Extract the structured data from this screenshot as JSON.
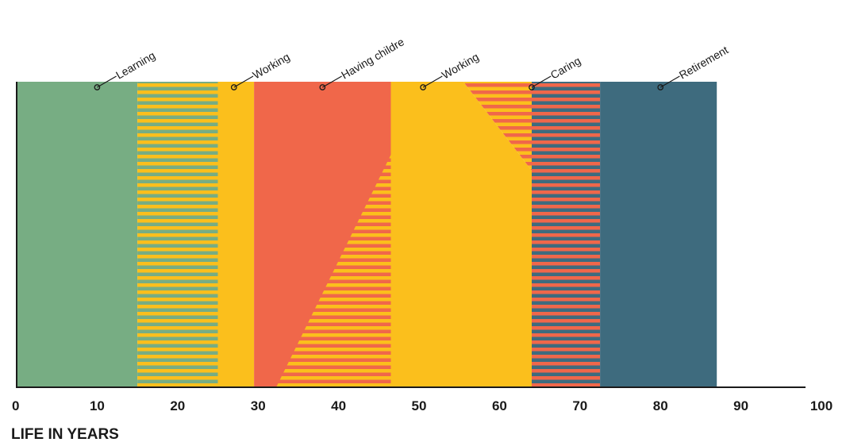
{
  "chart_data": {
    "type": "area",
    "xlabel": "LIFE IN YEARS",
    "xlim": [
      0,
      100
    ],
    "xticks": [
      0,
      10,
      20,
      30,
      40,
      50,
      60,
      70,
      80,
      90,
      100
    ],
    "stages": [
      {
        "label": "Learning",
        "start": 0,
        "end": 15,
        "color": "#77ad83",
        "marker_age": 10
      },
      {
        "label": "Working",
        "start": 25,
        "end": 29.5,
        "color": "#fbbf1c",
        "marker_age": 27
      },
      {
        "label": "Having childre",
        "start": 29.5,
        "end": 46.5,
        "color": "#f0674a",
        "marker_age": 38
      },
      {
        "label": "Working",
        "start": 46.5,
        "end": 64,
        "color": "#fbbf1c",
        "marker_age": 50.5
      },
      {
        "label": "Caring",
        "start": 64,
        "end": 72.5,
        "color": "#f0674a",
        "marker_age": 64
      },
      {
        "label": "Retirement",
        "start": 72.5,
        "end": 87,
        "color": "#3e6b7e",
        "marker_age": 80
      }
    ],
    "mixed_periods": [
      {
        "start": 15,
        "end": 25,
        "colors": [
          "#fbbf1c",
          "#77ad83"
        ]
      },
      {
        "start": 64,
        "end": 72.5,
        "colors": [
          "#3e6b7e",
          "#f0674a"
        ]
      }
    ],
    "colors": {
      "learning": "#77ad83",
      "working": "#fbbf1c",
      "children": "#f0674a",
      "caring": "#f0674a",
      "retirement": "#3e6b7e",
      "axis": "#1a1a1a"
    },
    "grid": false
  }
}
